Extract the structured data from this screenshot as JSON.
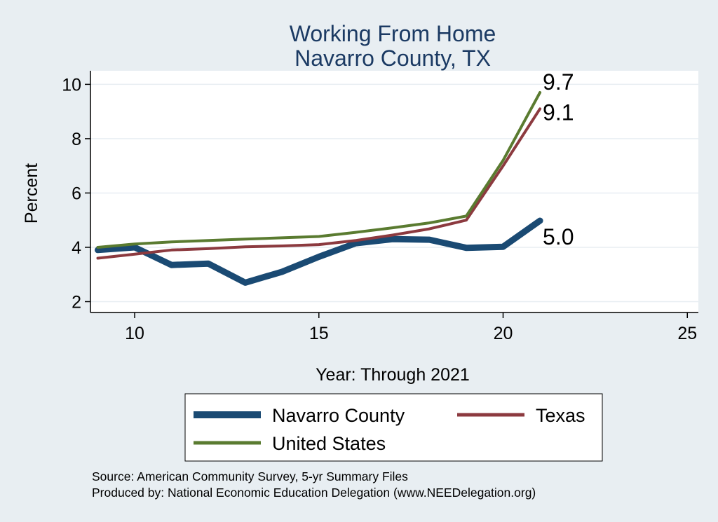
{
  "chart_data": {
    "type": "line",
    "title": [
      "Working From Home",
      "Navarro County, TX"
    ],
    "xlabel": "Year: Through 2021",
    "ylabel": "Percent",
    "xlim": [
      8.8,
      25.3
    ],
    "ylim": [
      1.6,
      10.5
    ],
    "xticks": [
      10,
      15,
      20,
      25
    ],
    "yticks": [
      2,
      4,
      6,
      8,
      10
    ],
    "grid": "horizontal",
    "legend": "bottom",
    "series": [
      {
        "name": "Navarro County",
        "color": "#1a4a73",
        "x": [
          9,
          10,
          11,
          12,
          13,
          14,
          15,
          16,
          17,
          18,
          19,
          20,
          21
        ],
        "y": [
          3.9,
          4.0,
          3.35,
          3.4,
          2.7,
          3.1,
          3.65,
          4.15,
          4.3,
          4.28,
          3.98,
          4.02,
          4.98
        ],
        "end_label": "5.0"
      },
      {
        "name": "Texas",
        "color": "#8c3a3f",
        "x": [
          9,
          10,
          11,
          12,
          13,
          14,
          15,
          16,
          17,
          18,
          19,
          20,
          21
        ],
        "y": [
          3.6,
          3.75,
          3.9,
          3.95,
          4.02,
          4.05,
          4.1,
          4.25,
          4.45,
          4.68,
          5.0,
          7.0,
          9.1
        ],
        "end_label": "9.1"
      },
      {
        "name": "United States",
        "color": "#5a7b30",
        "x": [
          9,
          10,
          11,
          12,
          13,
          14,
          15,
          16,
          17,
          18,
          19,
          20,
          21
        ],
        "y": [
          4.0,
          4.12,
          4.2,
          4.25,
          4.3,
          4.35,
          4.4,
          4.55,
          4.72,
          4.9,
          5.15,
          7.2,
          9.7
        ],
        "end_label": "9.7"
      }
    ],
    "notes": [
      "Source: American Community Survey, 5-yr Summary Files",
      "Produced by: National Economic Education Delegation (www.NEEDelegation.org)"
    ]
  }
}
